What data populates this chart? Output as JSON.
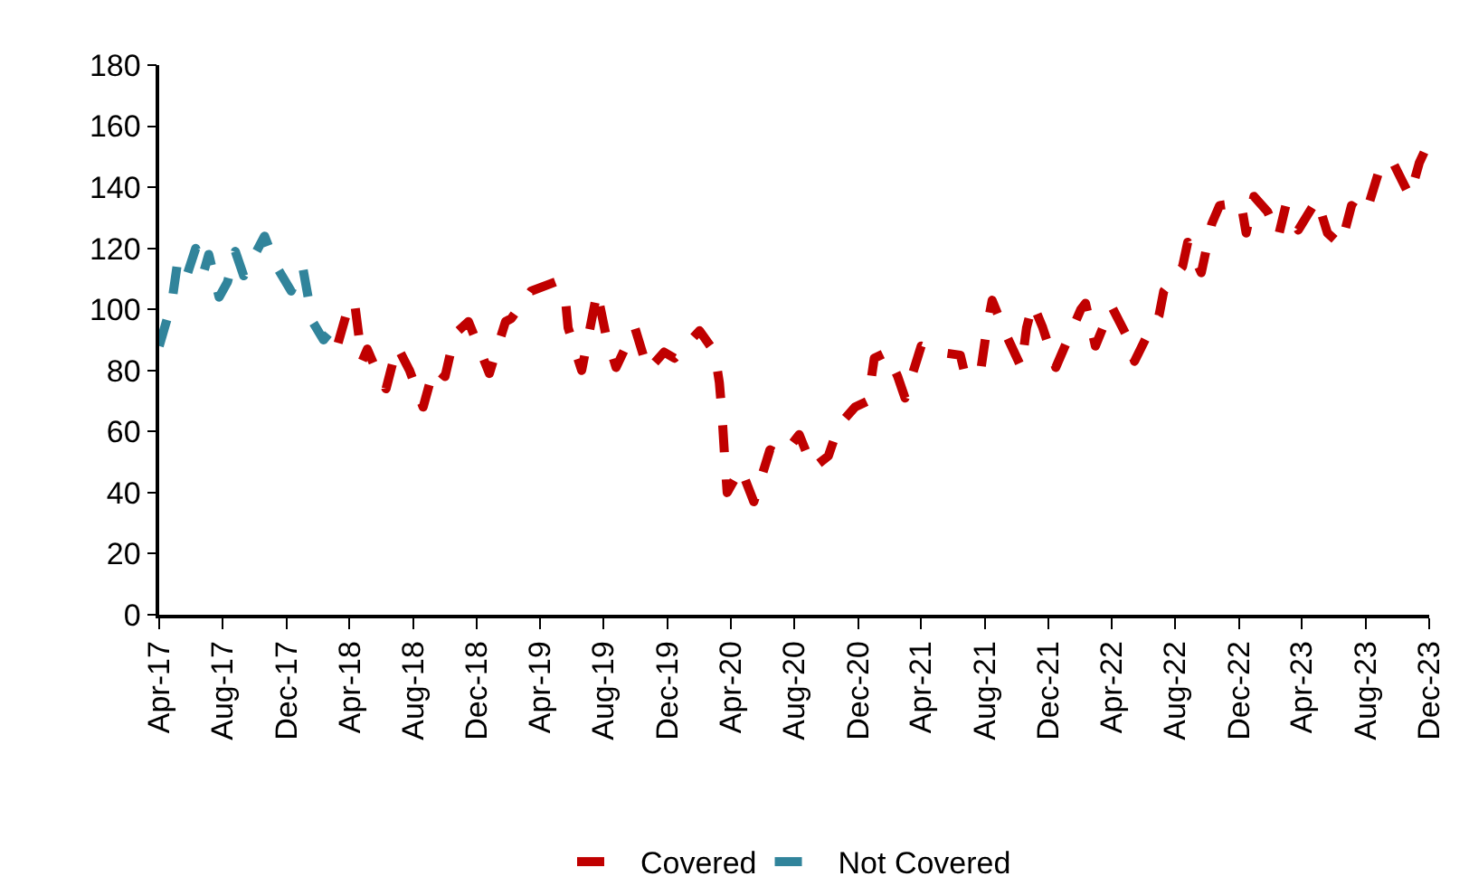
{
  "chart_data": {
    "type": "line",
    "line_style": "dashed",
    "marker": "none",
    "legend": "bottom",
    "xlim": [
      "2017-04-01",
      "2023-12-01"
    ],
    "xticks": [
      {
        "value": "2017-04-01",
        "label": "Apr-17"
      },
      {
        "value": "2017-08-01",
        "label": "Aug-17"
      },
      {
        "value": "2017-12-01",
        "label": "Dec-17"
      },
      {
        "value": "2018-04-01",
        "label": "Apr-18"
      },
      {
        "value": "2018-08-01",
        "label": "Aug-18"
      },
      {
        "value": "2018-12-01",
        "label": "Dec-18"
      },
      {
        "value": "2019-04-01",
        "label": "Apr-19"
      },
      {
        "value": "2019-08-01",
        "label": "Aug-19"
      },
      {
        "value": "2019-12-01",
        "label": "Dec-19"
      },
      {
        "value": "2020-04-01",
        "label": "Apr-20"
      },
      {
        "value": "2020-08-01",
        "label": "Aug-20"
      },
      {
        "value": "2020-12-01",
        "label": "Dec-20"
      },
      {
        "value": "2021-04-01",
        "label": "Apr-21"
      },
      {
        "value": "2021-08-01",
        "label": "Aug-21"
      },
      {
        "value": "2021-12-01",
        "label": "Dec-21"
      },
      {
        "value": "2022-04-01",
        "label": "Apr-22"
      },
      {
        "value": "2022-08-01",
        "label": "Aug-22"
      },
      {
        "value": "2022-12-01",
        "label": "Dec-22"
      },
      {
        "value": "2023-04-01",
        "label": "Apr-23"
      },
      {
        "value": "2023-08-01",
        "label": "Aug-23"
      },
      {
        "value": "2023-12-01",
        "label": "Dec-23"
      }
    ],
    "ylim": [
      0,
      180
    ],
    "yticks": [
      0,
      20,
      40,
      60,
      80,
      100,
      120,
      140,
      160,
      180
    ],
    "series": [
      {
        "name": "Covered",
        "color": "#c00000",
        "x": [
          "2018-03-10",
          "2018-03-25",
          "2018-04-10",
          "2018-04-25",
          "2018-05-05",
          "2018-05-25",
          "2018-06-10",
          "2018-07-01",
          "2018-07-25",
          "2018-08-20",
          "2018-09-10",
          "2018-10-01",
          "2018-10-20",
          "2018-11-15",
          "2018-12-25",
          "2019-01-25",
          "2019-02-05",
          "2019-03-15",
          "2019-05-01",
          "2019-05-20",
          "2019-05-25",
          "2019-06-20",
          "2019-07-20",
          "2019-07-24",
          "2019-08-05",
          "2019-08-25",
          "2019-09-30",
          "2019-10-25",
          "2019-11-25",
          "2019-12-15",
          "2020-02-01",
          "2020-03-01",
          "2020-03-10",
          "2020-03-15",
          "2020-03-20",
          "2020-03-25",
          "2020-04-20",
          "2020-05-15",
          "2020-06-15",
          "2020-07-10",
          "2020-08-10",
          "2020-09-05",
          "2020-10-05",
          "2020-10-25",
          "2020-11-25",
          "2020-12-20",
          "2021-01-01",
          "2021-01-25",
          "2021-02-15",
          "2021-03-01",
          "2021-04-01",
          "2021-05-05",
          "2021-06-15",
          "2021-06-25",
          "2021-07-25",
          "2021-08-05",
          "2021-08-15",
          "2021-09-10",
          "2021-10-10",
          "2021-10-20",
          "2021-11-01",
          "2021-11-20",
          "2021-12-15",
          "2022-02-01",
          "2022-02-10",
          "2022-03-01",
          "2022-04-01",
          "2022-05-01",
          "2022-05-15",
          "2022-06-10",
          "2022-07-01",
          "2022-07-10",
          "2022-08-15",
          "2022-08-25",
          "2022-09-20",
          "2022-10-10",
          "2022-10-25",
          "2022-12-05",
          "2022-12-15",
          "2022-12-30",
          "2023-01-25",
          "2023-02-15",
          "2023-03-01",
          "2023-03-25",
          "2023-04-30",
          "2023-05-20",
          "2023-06-15",
          "2023-07-05",
          "2023-08-01",
          "2023-08-28",
          "2023-09-20",
          "2023-10-25",
          "2023-11-12",
          "2023-12-01"
        ],
        "values": [
          89,
          98,
          103,
          83,
          87,
          79,
          74,
          88,
          80,
          68,
          81,
          78,
          92,
          96,
          79,
          96,
          97,
          106,
          109,
          103,
          94,
          80,
          106,
          102,
          92,
          81,
          94,
          80,
          86,
          84,
          93,
          86,
          76,
          66,
          52,
          40,
          48,
          37,
          54,
          52,
          59,
          48,
          52,
          62,
          68,
          70,
          84,
          86,
          78,
          71,
          88,
          86,
          85,
          78,
          81,
          94,
          103,
          92,
          81,
          94,
          102,
          94,
          81,
          100,
          102,
          88,
          101,
          91,
          83,
          92,
          98,
          106,
          114,
          122,
          112,
          128,
          134,
          135,
          125,
          137,
          132,
          124,
          134,
          126,
          136,
          125,
          121,
          134,
          131,
          146,
          149,
          137,
          148,
          155
        ]
      },
      {
        "name": "Not Covered",
        "color": "#31849b",
        "x": [
          "2017-04-01",
          "2017-04-25",
          "2017-05-05",
          "2017-05-20",
          "2017-06-10",
          "2017-06-25",
          "2017-07-05",
          "2017-07-25",
          "2017-08-10",
          "2017-08-25",
          "2017-09-10",
          "2017-10-20",
          "2017-11-12",
          "2017-12-10",
          "2018-01-01",
          "2018-01-20",
          "2018-02-10",
          "2018-03-01",
          "2018-03-10"
        ],
        "values": [
          88,
          102,
          114,
          109,
          120,
          112,
          118,
          104,
          109,
          119,
          111,
          124,
          114,
          106,
          114,
          96,
          90,
          94,
          90
        ]
      }
    ]
  }
}
